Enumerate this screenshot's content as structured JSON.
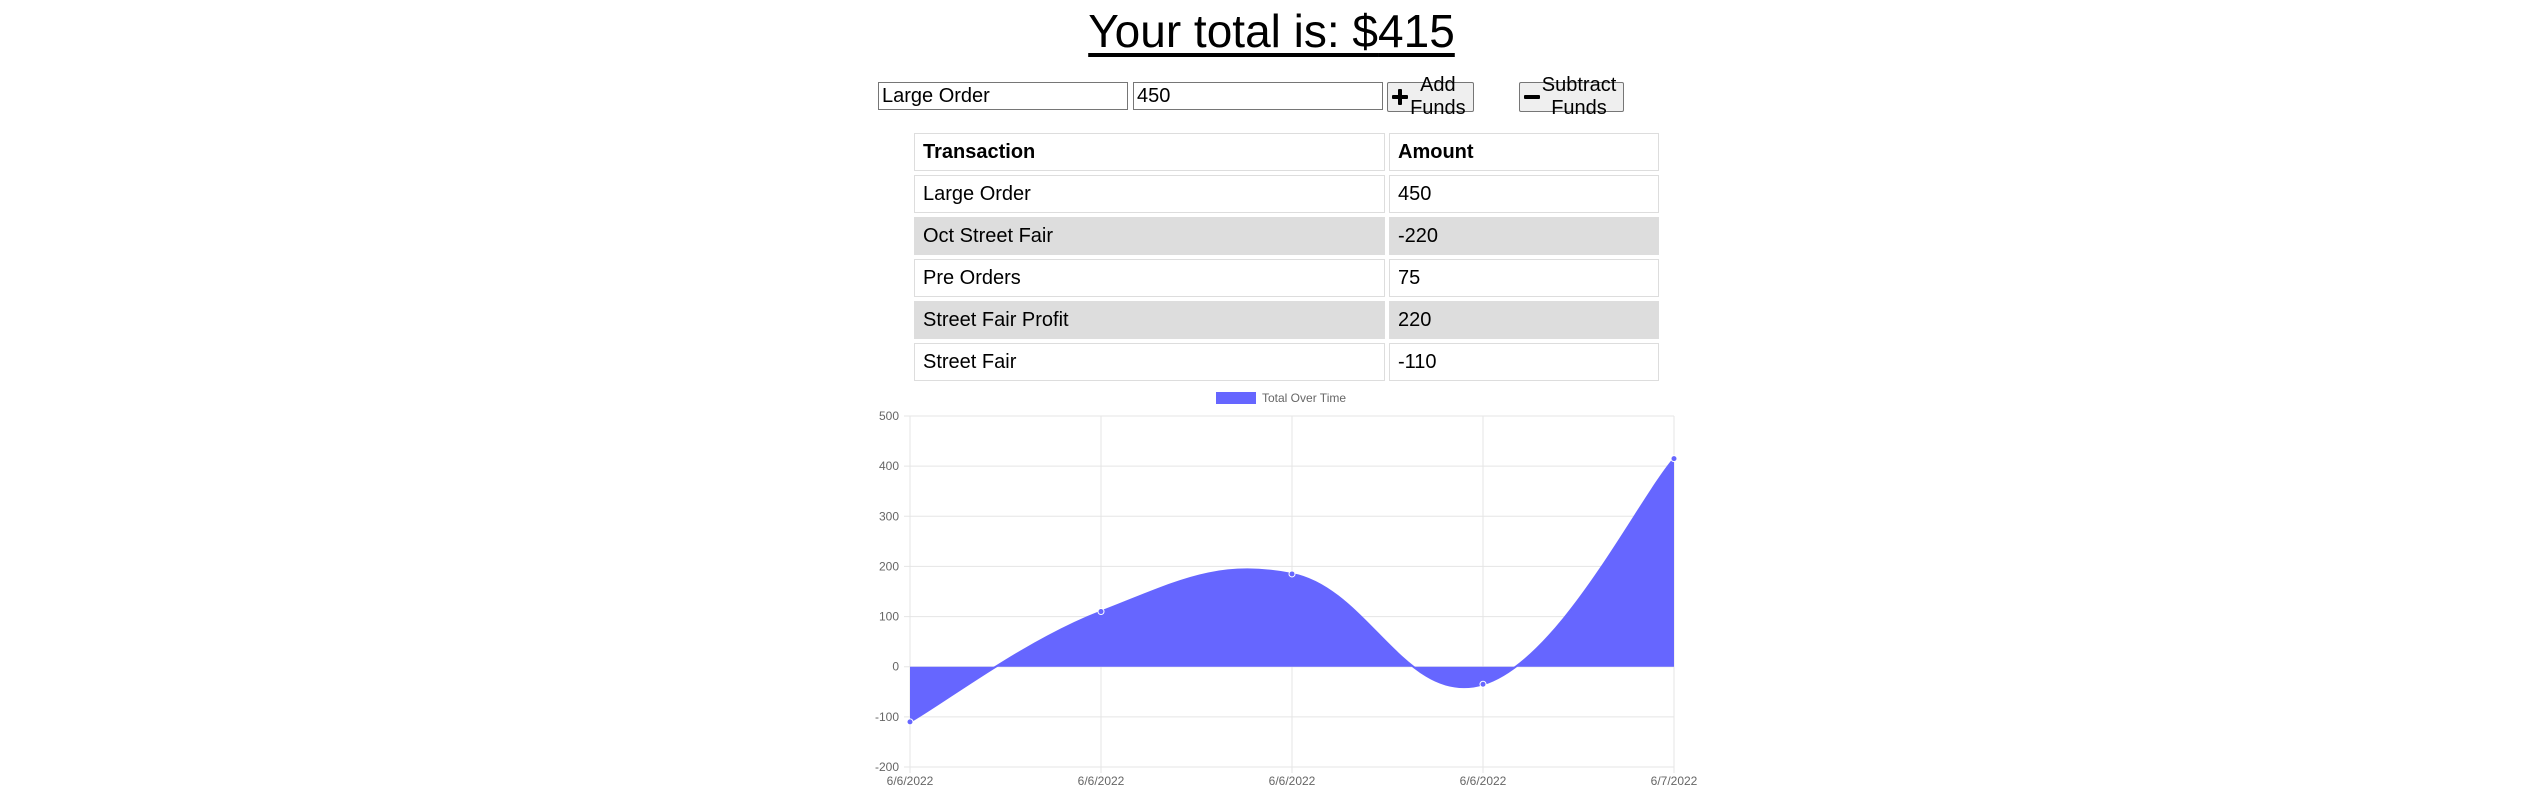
{
  "header": {
    "title_prefix": "Your total is: $",
    "total": "415"
  },
  "form": {
    "name_value": "Large Order",
    "amount_value": "450",
    "add_label": "Add Funds",
    "subtract_label": "Subtract Funds",
    "add_icon": "plus-icon",
    "subtract_icon": "minus-icon"
  },
  "table": {
    "headers": [
      "Transaction",
      "Amount"
    ],
    "rows": [
      {
        "name": "Large Order",
        "amount": "450"
      },
      {
        "name": "Oct Street Fair",
        "amount": "-220"
      },
      {
        "name": "Pre Orders",
        "amount": "75"
      },
      {
        "name": "Street Fair Profit",
        "amount": "220"
      },
      {
        "name": "Street Fair",
        "amount": "-110"
      }
    ]
  },
  "chart_data": {
    "type": "area",
    "legend": "Total Over Time",
    "legend_position": "top",
    "x": [
      "6/6/2022",
      "6/6/2022",
      "6/6/2022",
      "6/6/2022",
      "6/7/2022"
    ],
    "series": [
      {
        "name": "Total Over Time",
        "values": [
          -110,
          110,
          185,
          -35,
          415
        ],
        "color": "#6666ff"
      }
    ],
    "ylim": [
      -200,
      500
    ],
    "yticks": [
      -200,
      -100,
      0,
      100,
      200,
      300,
      400,
      500
    ],
    "grid": true
  }
}
